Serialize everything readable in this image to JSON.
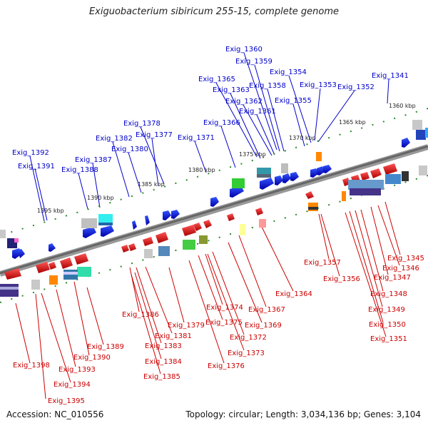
{
  "title": "Exiguobacterium sibiricum 255-15, complete genome",
  "footer": {
    "accession": "Accession: NC_010556",
    "summary": "Topology: circular; Length: 3,034,136 bp; Genes: 3,104"
  },
  "kbp_ticks": [
    "1360 kbp",
    "1365 kbp",
    "1370 kbp",
    "1375 kbp",
    "1380 kbp",
    "1385 kbp",
    "1390 kbp",
    "1395 kbp"
  ],
  "top_labels": [
    "Exig_1360",
    "Exig_1359",
    "Exig_1354",
    "Exig_1341",
    "Exig_1365",
    "Exig_1358",
    "Exig_1353",
    "Exig_1352",
    "Exig_1363",
    "Exig_1362",
    "Exig_1355",
    "Exig_1361",
    "Exig_1378",
    "Exig_1366",
    "Exig_1382",
    "Exig_1377",
    "Exig_1371",
    "Exig_1380",
    "Exig_1392",
    "Exig_1387",
    "Exig_1391",
    "Exig_1388"
  ],
  "bottom_labels": [
    "Exig_1357",
    "Exig_1345",
    "Exig_1356",
    "Exig_1346",
    "Exig_1347",
    "Exig_1364",
    "Exig_1348",
    "Exig_1374",
    "Exig_1367",
    "Exig_1349",
    "Exig_1386",
    "Exig_1375",
    "Exig_1379",
    "Exig_1369",
    "Exig_1350",
    "Exig_1381",
    "Exig_1372",
    "Exig_1351",
    "Exig_1389",
    "Exig_1383",
    "Exig_1373",
    "Exig_1390",
    "Exig_1384",
    "Exig_1398",
    "Exig_1376",
    "Exig_1393",
    "Exig_1385",
    "Exig_1394",
    "Exig_1395"
  ],
  "colors": {
    "top_label": "#0000cc",
    "bottom_label": "#cc0000",
    "forward_gene": "#1a1aee",
    "reverse_gene": "#ee1a1a",
    "backbone": "#777777",
    "tick": "#2a8a2a"
  }
}
